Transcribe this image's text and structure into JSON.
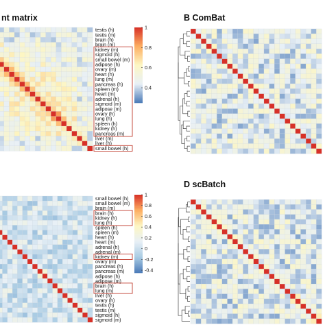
{
  "figure": {
    "panels": [
      {
        "id": "A",
        "title_text": "nt matrix"
      },
      {
        "id": "B",
        "title_text": "B  ComBat"
      },
      {
        "id": "C",
        "title_text": ""
      },
      {
        "id": "D",
        "title_text": "D  scBatch"
      }
    ]
  },
  "chart_data": [
    {
      "type": "heatmap",
      "panel": "A",
      "title": "nt matrix",
      "row_labels": [
        "testis (h)",
        "testis (m)",
        "brain (h)",
        "brain (m)",
        "kidney (m)",
        "sigmoid (h)",
        "small bowel (m)",
        "adipose (h)",
        "ovary (m)",
        "heart (h)",
        "lung (m)",
        "pancreas (h)",
        "spleen (m)",
        "heart (m)",
        "adrenal (h)",
        "sigmoid (m)",
        "adipose (m)",
        "ovary (h)",
        "lung (h)",
        "spleen (h)",
        "kidney (h)",
        "pancreas (m)",
        "liver (m)",
        "liver (h)",
        "small bowel (h)"
      ],
      "highlight_boxes": [
        [
          4,
          21
        ],
        [
          24,
          24
        ]
      ],
      "colorbar": {
        "ticks": [
          1,
          0.8,
          0.6,
          0.4
        ],
        "range": [
          0.25,
          1
        ],
        "colors": [
          "#4a7ab7",
          "#e8f0f6",
          "#fdf6c3",
          "#fdae61",
          "#d73027"
        ]
      },
      "value_pattern": "diagonal = 1; off-diagonal mostly 0.4-0.6 with a warm (0.7-0.9) block among the middle tissues"
    },
    {
      "type": "heatmap",
      "panel": "B",
      "title": "ComBat",
      "row_labels": [],
      "dendrogram": "left",
      "value_pattern": "diagonal = 1; off-diagonal mostly 0.3-0.6 (blue / pale blue)"
    },
    {
      "type": "heatmap",
      "panel": "C",
      "title": "",
      "row_labels": [
        "small bowel (h)",
        "small bowel (m)",
        "brain (m)",
        "brain (h)",
        "kidney (h)",
        "lung (h)",
        "spleen (h)",
        "spleen (m)",
        "heart (h)",
        "heart (m)",
        "adrenal (h)",
        "adrenal (m)",
        "kidney (m)",
        "ovary (m)",
        "pancreas (h)",
        "pancreas (m)",
        "adipose (h)",
        "adipose (m)",
        "brain (h)",
        "lung (m)",
        "liver (h)",
        "ovary (h)",
        "testis (h)",
        "testis (m)",
        "sigmoid (h)",
        "sigmoid (m)"
      ],
      "highlight_boxes": [
        [
          3,
          5
        ],
        [
          12,
          12
        ],
        [
          18,
          19
        ]
      ],
      "colorbar": {
        "ticks": [
          1,
          0.8,
          0.6,
          0.4,
          0.2,
          0,
          -0.2,
          -0.4
        ],
        "range": [
          -0.45,
          1
        ],
        "colors": [
          "#4a7ab7",
          "#a9cbe3",
          "#e8f0f6",
          "#fdf6c3",
          "#fdae61",
          "#d73027"
        ]
      },
      "value_pattern": "diagonal = 1; off-diagonal mostly around 0 (pale blue / light yellow)"
    },
    {
      "type": "heatmap",
      "panel": "D",
      "title": "scBatch",
      "row_labels": [],
      "dendrogram": "left",
      "value_pattern": "diagonal = 1; off-diagonal mostly 0.3-0.6 (blue / pale blue)"
    }
  ]
}
